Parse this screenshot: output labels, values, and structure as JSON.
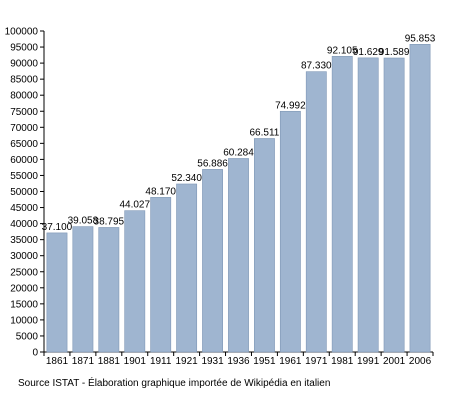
{
  "chart_data": {
    "type": "bar",
    "categories": [
      "1861",
      "1871",
      "1881",
      "1901",
      "1911",
      "1921",
      "1931",
      "1936",
      "1951",
      "1961",
      "1971",
      "1981",
      "1991",
      "2001",
      "2006"
    ],
    "values": [
      37100,
      39058,
      38795,
      44027,
      48170,
      52340,
      56886,
      60284,
      66511,
      74992,
      87330,
      92105,
      91629,
      91589,
      95853
    ],
    "data_labels": [
      "37.100",
      "39.058",
      "38.795",
      "44.027",
      "48.170",
      "52.340",
      "56.886",
      "60.284",
      "66.511",
      "74.992",
      "87.330",
      "92.105",
      "91.629",
      "91.589",
      "95.853"
    ],
    "yticks": [
      "0",
      "5000",
      "10000",
      "15000",
      "20000",
      "25000",
      "30000",
      "35000",
      "40000",
      "45000",
      "50000",
      "55000",
      "60000",
      "65000",
      "70000",
      "75000",
      "80000",
      "85000",
      "90000",
      "95000",
      "100000"
    ],
    "ylim": [
      0,
      100000
    ],
    "title": "",
    "xlabel": "",
    "ylabel": "",
    "grid": false,
    "bar_color": "#9fb5d0",
    "bar_edge_color": "#7f97b5"
  },
  "source_text": "Source ISTAT - Élaboration graphique importée de Wikipédia en italien"
}
